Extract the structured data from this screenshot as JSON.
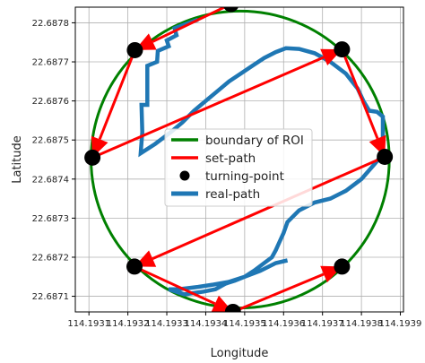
{
  "chart_data": {
    "type": "line",
    "title": "",
    "xlabel": "Longitude",
    "ylabel": "Latitude",
    "xlim": [
      114.193065,
      114.193908
    ],
    "ylim": [
      22.68706,
      22.68784
    ],
    "xticks": [
      114.1931,
      114.1932,
      114.1933,
      114.1934,
      114.1935,
      114.1936,
      114.1937,
      114.1938,
      114.1939
    ],
    "xtick_labels": [
      "114.1931",
      "114.1932",
      "114.1933",
      "114.1934",
      "114.1935",
      "114.1936",
      "114.1937",
      "114.1938",
      "114.1939"
    ],
    "yticks": [
      22.6871,
      22.6872,
      22.6873,
      22.6874,
      22.6875,
      22.6876,
      22.6877,
      22.6878
    ],
    "ytick_labels": [
      "22.6871",
      "22.6872",
      "22.6873",
      "22.6874",
      "22.6875",
      "22.6876",
      "22.6877",
      "22.6878"
    ],
    "grid": true,
    "legend_position": "center",
    "colors": {
      "boundary": "#008000",
      "set_path": "#ff0000",
      "turning_point": "#000000",
      "real_path": "#1f77b4"
    },
    "legend": [
      "boundary of ROI",
      "set-path",
      "turning-point",
      "real-path"
    ],
    "boundary_of_roi": {
      "center": [
        114.1934885,
        22.68745
      ],
      "radius_x": 0.000383,
      "radius_y": 0.00038
    },
    "turning_points": {
      "x": [
        114.193465,
        114.193218,
        114.193109,
        114.193217,
        114.19347,
        114.19375,
        114.19386,
        114.19375
      ],
      "y": [
        22.687848,
        22.68773,
        22.687455,
        22.687176,
        22.68706,
        22.687176,
        22.687457,
        22.687732
      ]
    },
    "set_path": {
      "x": [
        114.193465,
        114.193218,
        114.193109,
        114.19375,
        114.19386,
        114.193217,
        114.19347,
        114.19375
      ],
      "y": [
        22.687848,
        22.68773,
        22.687455,
        22.687732,
        22.687457,
        22.687176,
        22.68706,
        22.687176
      ]
    },
    "real_path": {
      "x": [
        114.19338,
        114.19332,
        114.193325,
        114.1933,
        114.193305,
        114.193277,
        114.193275,
        114.19325,
        114.19325,
        114.193235,
        114.193237,
        114.193233,
        114.19327,
        114.19331,
        114.19334,
        114.19337,
        114.1934,
        114.19343,
        114.19346,
        114.19349,
        114.19352,
        114.19355,
        114.19358,
        114.193606,
        114.19364,
        114.19368,
        114.19372,
        114.19376,
        114.19379,
        114.193805,
        114.19382,
        114.19384,
        114.193855,
        114.193855,
        114.193835,
        114.1938,
        114.19376,
        114.19372,
        114.19368,
        114.19364,
        114.19361,
        114.1936,
        114.19359,
        114.19358,
        114.19357,
        114.19355,
        114.193525,
        114.1935,
        114.193475,
        114.19345,
        114.193425,
        114.193395,
        114.193345,
        114.193305,
        114.19333,
        114.19338,
        114.19342,
        114.19346,
        114.1935,
        114.19354,
        114.19358,
        114.19361
      ],
      "y": [
        22.687808,
        22.687786,
        22.687768,
        22.687755,
        22.68774,
        22.687728,
        22.6877,
        22.68769,
        22.68759,
        22.68759,
        22.68752,
        22.687466,
        22.68749,
        22.68752,
        22.687545,
        22.687575,
        22.6876,
        22.687625,
        22.68765,
        22.68767,
        22.68769,
        22.68771,
        22.687725,
        22.687735,
        22.687733,
        22.687722,
        22.6877,
        22.68767,
        22.687632,
        22.6876,
        22.687575,
        22.687572,
        22.68756,
        22.687465,
        22.68744,
        22.6874,
        22.68737,
        22.68735,
        22.68734,
        22.68732,
        22.68729,
        22.687262,
        22.68724,
        22.687218,
        22.6872,
        22.687185,
        22.687166,
        22.68715,
        22.68714,
        22.687132,
        22.687118,
        22.687112,
        22.687105,
        22.687118,
        22.687118,
        22.687124,
        22.68713,
        22.687137,
        22.68715,
        22.687165,
        22.687185,
        22.687192
      ]
    }
  }
}
